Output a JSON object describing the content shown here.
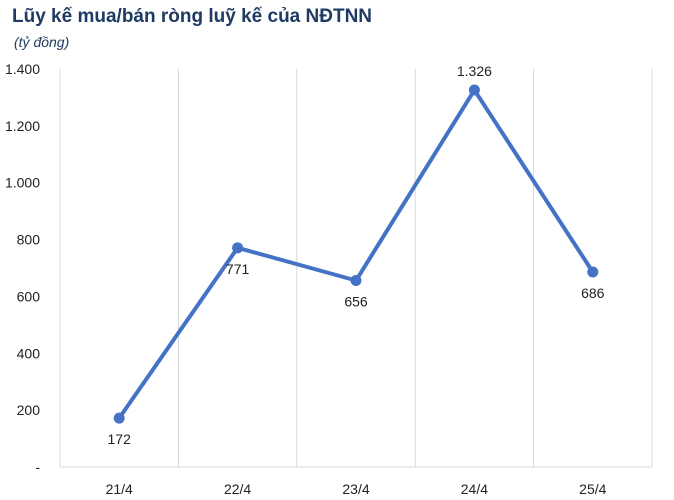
{
  "chart_data": {
    "type": "line",
    "title": "Lũy kế mua/bán ròng luỹ kế của NĐTNN",
    "subtitle": "(tỷ đồng)",
    "categories": [
      "21/4",
      "22/4",
      "23/4",
      "24/4",
      "25/4"
    ],
    "series": [
      {
        "values": [
          172,
          771,
          656,
          1326,
          686
        ]
      }
    ],
    "data_labels": [
      "172",
      "771",
      "656",
      "1.326",
      "686"
    ],
    "yticks": [
      "-",
      "200",
      "400",
      "600",
      "800",
      "1.000",
      "1.200",
      "1.400"
    ],
    "ylim": [
      0,
      1400
    ],
    "grid": "vertical",
    "line_color": "#4472c4"
  }
}
